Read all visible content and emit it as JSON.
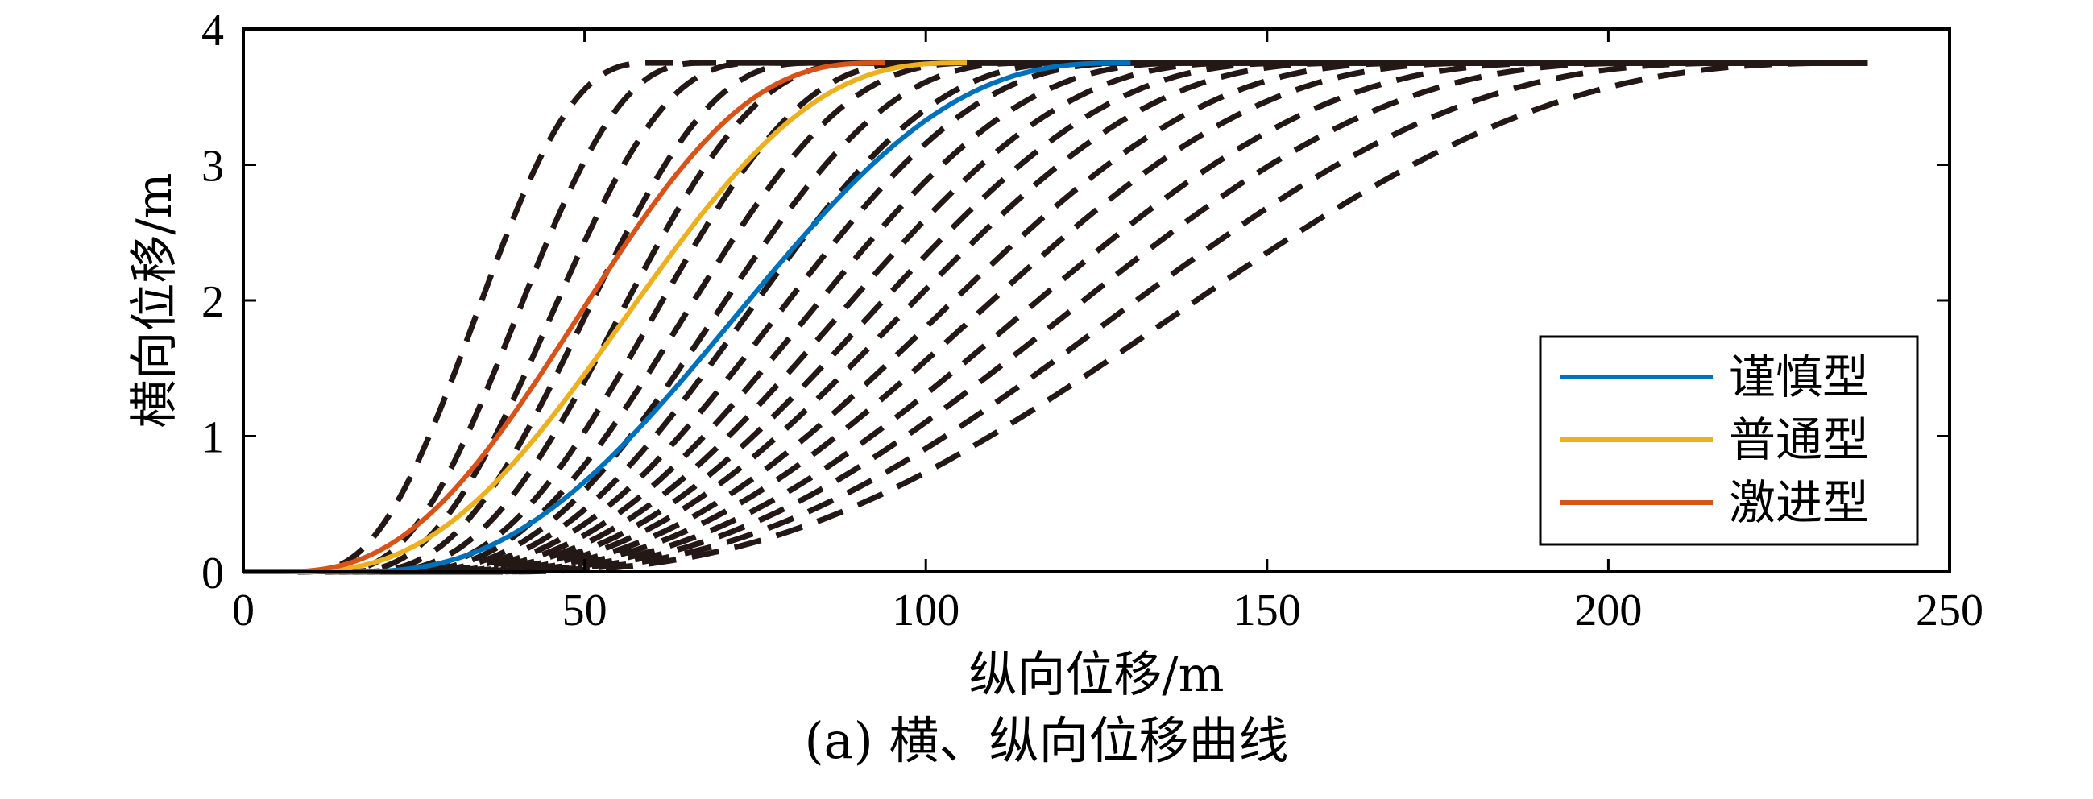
{
  "chart_data": {
    "type": "line",
    "xlabel": "纵向位移/m",
    "ylabel": "横向位移/m",
    "xlim": [
      0,
      250
    ],
    "ylim": [
      0,
      4
    ],
    "xticks": [
      0,
      50,
      100,
      150,
      200,
      250
    ],
    "yticks": [
      0,
      1,
      2,
      3,
      4
    ],
    "grid": false,
    "legend_position": "bottom-right",
    "candidate_curves": {
      "style": "dashed",
      "color": "#231815",
      "lateral_offset": 3.75,
      "start_x": [
        8,
        12,
        14,
        16,
        18,
        20,
        21,
        22,
        23,
        24,
        25,
        26,
        27,
        28,
        29,
        30,
        31,
        32,
        33,
        34
      ],
      "end_x": [
        60,
        68,
        76,
        84,
        92,
        100,
        108,
        116,
        124,
        132,
        140,
        148,
        156,
        164,
        174,
        184,
        196,
        208,
        222,
        238
      ]
    },
    "series": [
      {
        "name": "谨慎型",
        "color": "#0072BD",
        "start_x": 14,
        "end_x": 130,
        "y_end": 3.75
      },
      {
        "name": "普通型",
        "color": "#EDB120",
        "start_x": 6,
        "end_x": 106,
        "y_end": 3.75
      },
      {
        "name": "激进型",
        "color": "#D95319",
        "start_x": 4,
        "end_x": 94,
        "y_end": 3.75
      }
    ]
  },
  "caption": "(a) 横、纵向位移曲线"
}
